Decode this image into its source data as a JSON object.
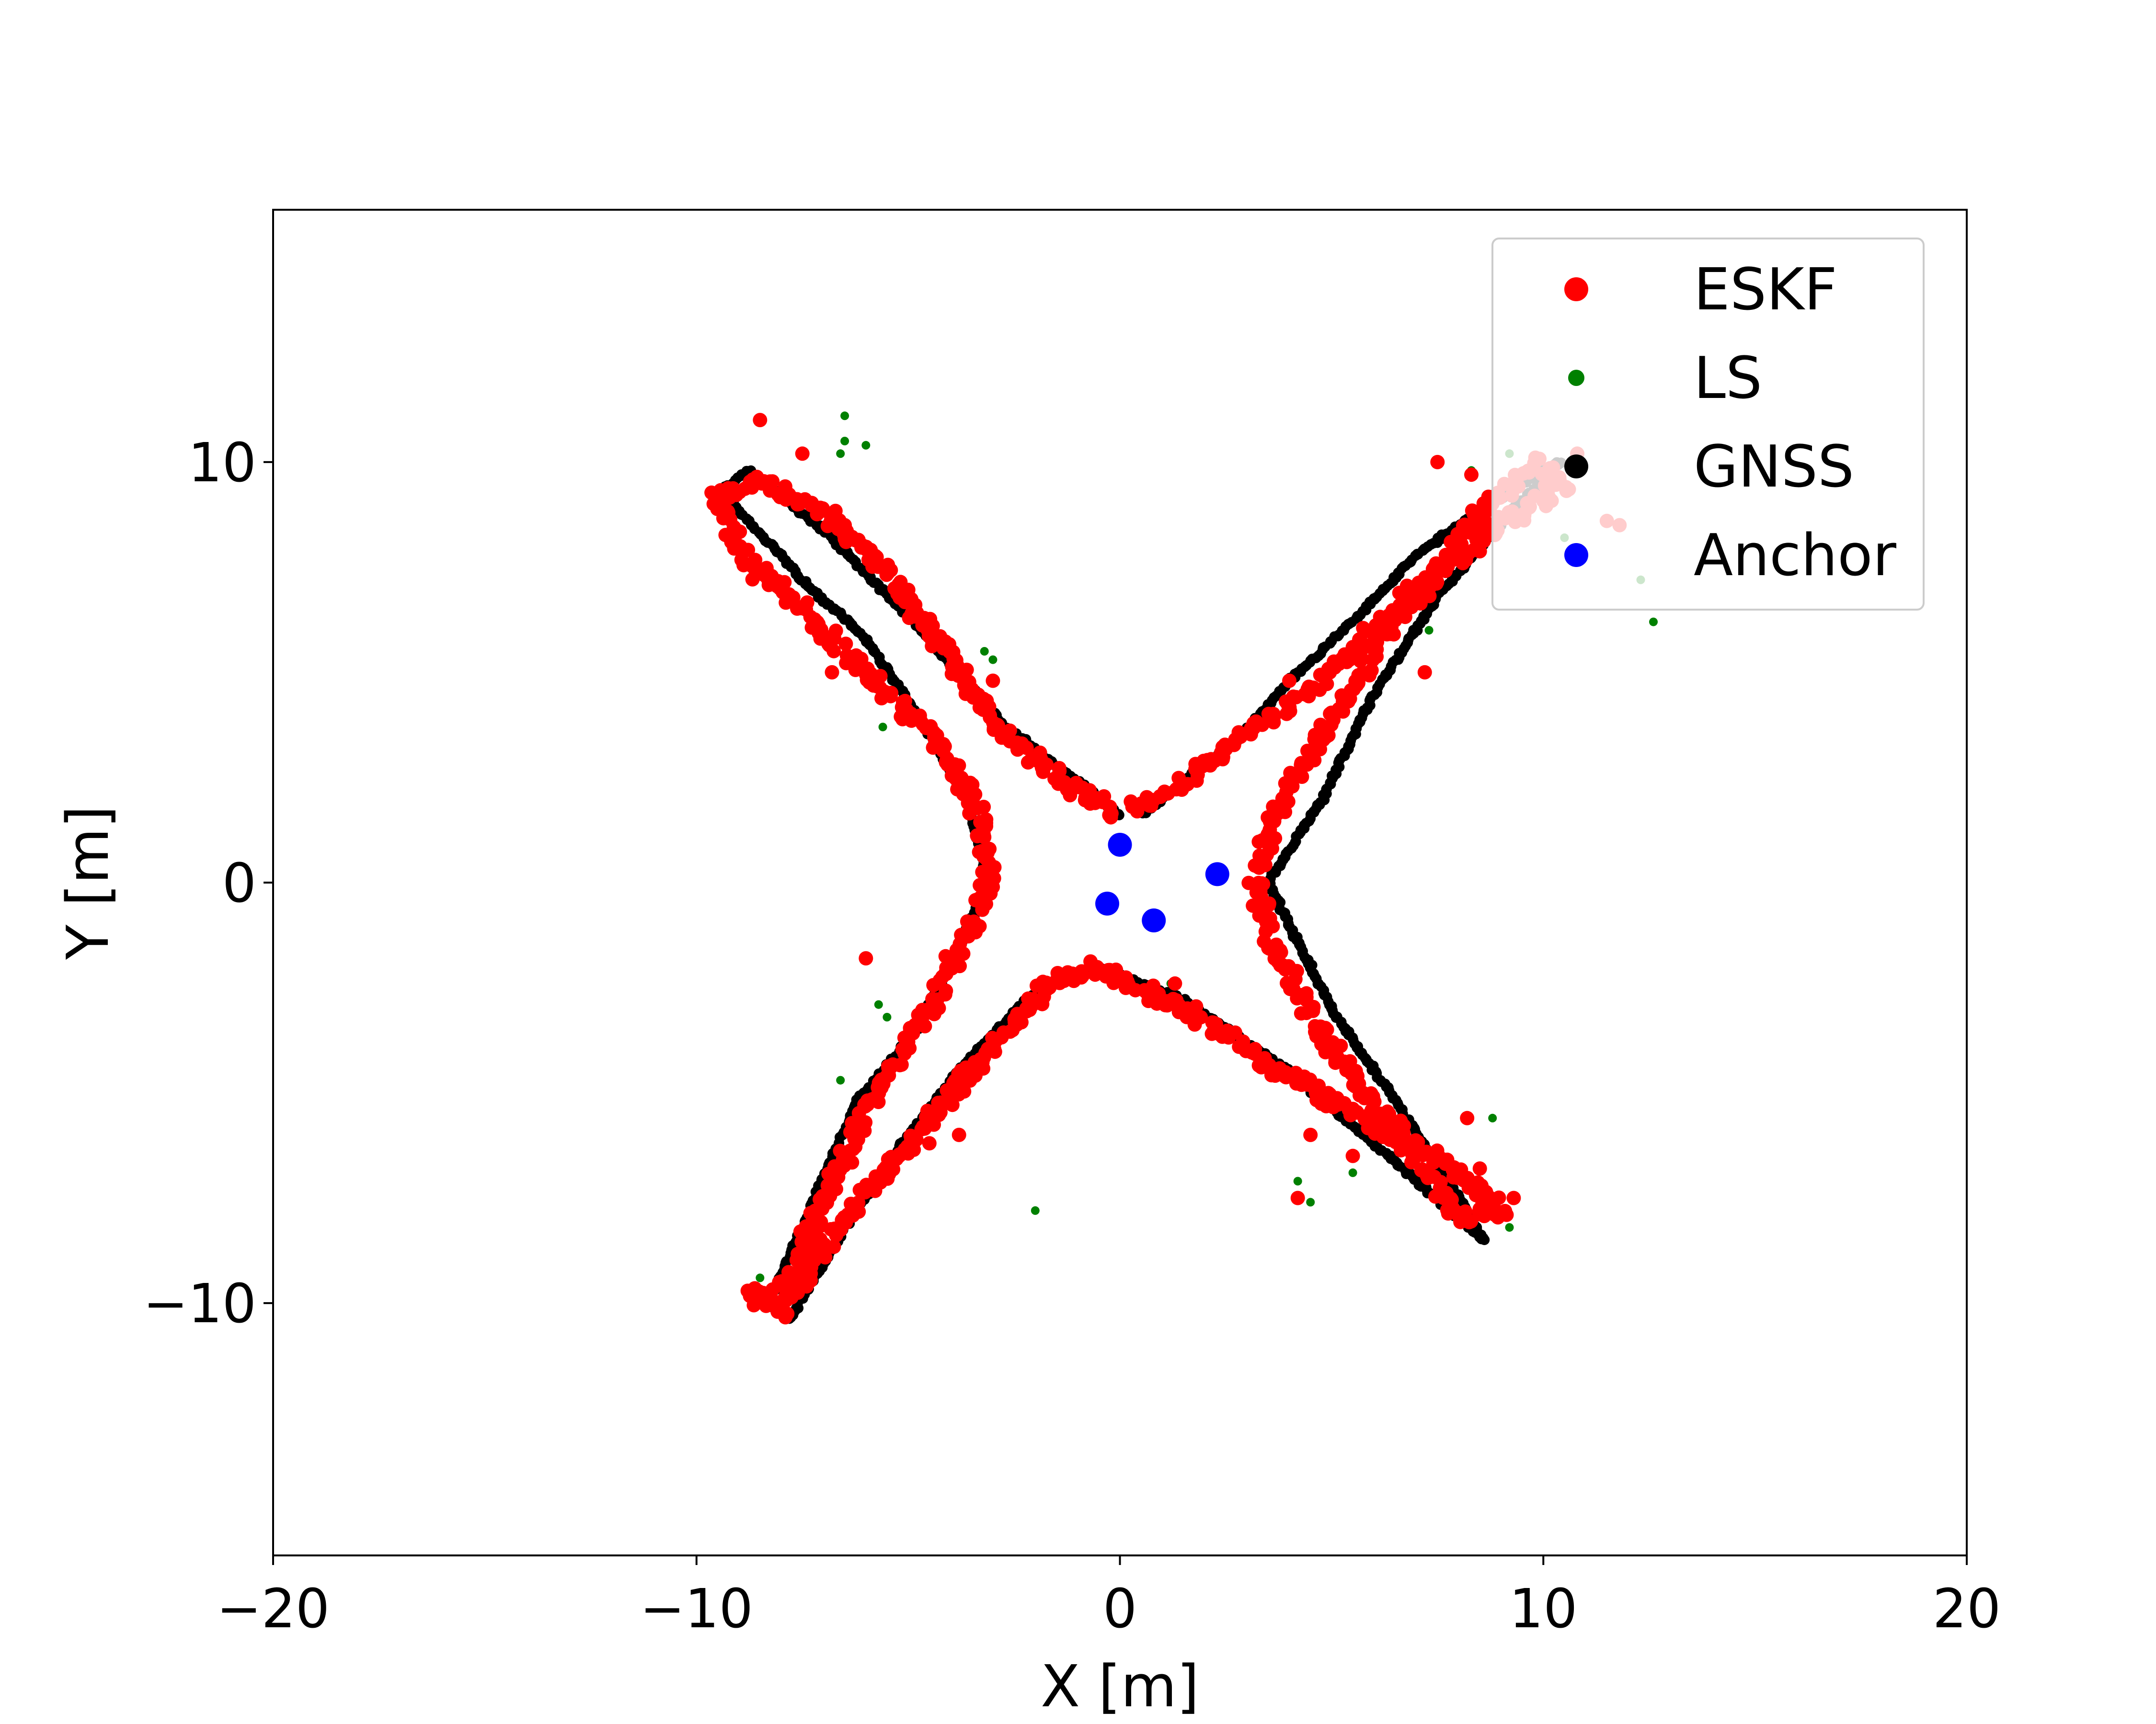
{
  "chart_data": {
    "type": "scatter",
    "title": "",
    "xlabel": "X [m]",
    "ylabel": "Y [m]",
    "xlim": [
      -20,
      20
    ],
    "ylim": [
      -16,
      16
    ],
    "xticks": [
      -20,
      -10,
      0,
      10,
      20
    ],
    "xtick_labels": [
      "−20",
      "−10",
      "0",
      "10",
      "20"
    ],
    "yticks": [
      -10,
      0,
      10
    ],
    "ytick_labels": [
      "−10",
      "0",
      "10"
    ],
    "grid": false,
    "legend_position": "top-right",
    "series": [
      {
        "name": "ESKF",
        "color": "#ff0000",
        "path": [
          [
            -0.2,
            1.7
          ],
          [
            -1.5,
            2.5
          ],
          [
            -3.0,
            3.8
          ],
          [
            -4.5,
            6.0
          ],
          [
            -5.5,
            7.5
          ],
          [
            -7.0,
            8.8
          ],
          [
            -8.5,
            9.5
          ],
          [
            -9.5,
            9.2
          ],
          [
            -9.0,
            7.8
          ],
          [
            -7.5,
            6.5
          ],
          [
            -5.5,
            4.5
          ],
          [
            -4.0,
            3.0
          ],
          [
            -3.3,
            1.5
          ],
          [
            -3.1,
            0.0
          ],
          [
            -3.6,
            -1.2
          ],
          [
            -4.5,
            -3.0
          ],
          [
            -5.7,
            -4.8
          ],
          [
            -6.5,
            -6.5
          ],
          [
            -7.2,
            -8.0
          ],
          [
            -7.9,
            -9.6
          ],
          [
            -8.7,
            -9.8
          ],
          [
            -8.0,
            -10.2
          ],
          [
            -7.0,
            -8.6
          ],
          [
            -5.5,
            -6.8
          ],
          [
            -3.5,
            -4.5
          ],
          [
            -1.8,
            -2.5
          ],
          [
            -0.5,
            -2.0
          ],
          [
            1.5,
            -3.0
          ],
          [
            3.5,
            -4.3
          ],
          [
            6.0,
            -5.8
          ],
          [
            7.5,
            -6.5
          ],
          [
            9.0,
            -7.8
          ],
          [
            8.0,
            -8.0
          ],
          [
            6.5,
            -5.8
          ],
          [
            5.0,
            -4.0
          ],
          [
            3.6,
            -1.5
          ],
          [
            3.2,
            0.0
          ],
          [
            3.6,
            1.5
          ],
          [
            4.8,
            3.5
          ],
          [
            6.0,
            5.5
          ],
          [
            7.2,
            7.0
          ],
          [
            8.5,
            8.8
          ],
          [
            9.8,
            10.0
          ],
          [
            10.5,
            9.5
          ],
          [
            9.0,
            8.5
          ],
          [
            7.0,
            7.0
          ],
          [
            5.5,
            5.5
          ],
          [
            4.0,
            4.2
          ],
          [
            2.5,
            3.2
          ],
          [
            1.0,
            2.0
          ],
          [
            0.3,
            1.7
          ]
        ],
        "outliers": [
          [
            -8.5,
            11.0
          ],
          [
            -7.5,
            10.2
          ],
          [
            -6.5,
            8.5
          ],
          [
            -6.8,
            5.0
          ],
          [
            -6.0,
            5.0
          ],
          [
            -3.0,
            4.8
          ],
          [
            -6.0,
            -1.8
          ],
          [
            -4.5,
            -6.2
          ],
          [
            -3.8,
            -6.0
          ],
          [
            -0.8,
            2.0
          ],
          [
            1.3,
            -2.4
          ],
          [
            4.2,
            -7.5
          ],
          [
            4.5,
            -6.0
          ],
          [
            5.5,
            -6.5
          ],
          [
            8.2,
            -5.6
          ],
          [
            8.5,
            -6.8
          ],
          [
            9.3,
            -7.5
          ],
          [
            4.0,
            4.8
          ],
          [
            5.5,
            5.6
          ],
          [
            7.2,
            5.0
          ],
          [
            7.5,
            10.0
          ],
          [
            8.3,
            9.7
          ],
          [
            10.8,
            10.2
          ],
          [
            11.5,
            8.6
          ],
          [
            11.8,
            8.5
          ]
        ],
        "marker_size": 30
      },
      {
        "name": "LS",
        "color": "#008000",
        "points": [
          [
            -6.5,
            11.1
          ],
          [
            -6.5,
            10.5
          ],
          [
            -6.0,
            10.4
          ],
          [
            -6.6,
            10.2
          ],
          [
            -3.2,
            5.5
          ],
          [
            -3.0,
            5.3
          ],
          [
            -5.6,
            3.7
          ],
          [
            -5.7,
            -2.9
          ],
          [
            -5.5,
            -3.2
          ],
          [
            -6.6,
            -4.7
          ],
          [
            -4.8,
            -6.0
          ],
          [
            -2.0,
            -7.8
          ],
          [
            -8.5,
            -9.4
          ],
          [
            4.2,
            -7.1
          ],
          [
            4.5,
            -7.6
          ],
          [
            5.5,
            -6.9
          ],
          [
            7.0,
            -6.3
          ],
          [
            8.8,
            -5.6
          ],
          [
            9.2,
            -8.2
          ],
          [
            12.6,
            6.2
          ],
          [
            12.3,
            7.2
          ],
          [
            10.5,
            8.2
          ],
          [
            8.3,
            9.8
          ],
          [
            9.2,
            10.2
          ],
          [
            -0.5,
            2.0
          ],
          [
            1.2,
            -2.4
          ],
          [
            7.3,
            6.0
          ]
        ],
        "marker_size": 18
      },
      {
        "name": "GNSS",
        "color": "#000000",
        "path": [
          [
            0.0,
            1.6
          ],
          [
            -2.8,
            3.8
          ],
          [
            -4.5,
            5.8
          ],
          [
            -7.0,
            8.4
          ],
          [
            -8.8,
            9.8
          ],
          [
            -9.4,
            9.3
          ],
          [
            -7.5,
            7.2
          ],
          [
            -6.0,
            5.8
          ],
          [
            -4.8,
            4.0
          ],
          [
            -3.6,
            2.0
          ],
          [
            -3.1,
            0.0
          ],
          [
            -3.8,
            -1.5
          ],
          [
            -4.8,
            -3.5
          ],
          [
            -6.2,
            -5.2
          ],
          [
            -7.2,
            -7.5
          ],
          [
            -8.3,
            -10.0
          ],
          [
            -7.8,
            -10.4
          ],
          [
            -6.5,
            -8.2
          ],
          [
            -5.0,
            -6.0
          ],
          [
            -3.4,
            -4.0
          ],
          [
            -2.0,
            -2.6
          ],
          [
            -0.5,
            -2.0
          ],
          [
            1.5,
            -2.8
          ],
          [
            4.0,
            -4.5
          ],
          [
            6.0,
            -6.2
          ],
          [
            8.6,
            -8.5
          ],
          [
            8.0,
            -7.5
          ],
          [
            6.5,
            -5.2
          ],
          [
            5.0,
            -3.0
          ],
          [
            3.5,
            0.0
          ],
          [
            4.8,
            2.0
          ],
          [
            6.0,
            4.5
          ],
          [
            7.5,
            6.8
          ],
          [
            9.2,
            8.8
          ],
          [
            10.4,
            10.0
          ],
          [
            9.5,
            9.5
          ],
          [
            7.0,
            7.8
          ],
          [
            5.5,
            6.2
          ],
          [
            4.0,
            4.8
          ],
          [
            2.8,
            3.4
          ],
          [
            1.5,
            2.4
          ],
          [
            0.5,
            1.6
          ]
        ],
        "marker_size": 22
      },
      {
        "name": "Anchor",
        "color": "#0000ff",
        "points": [
          [
            0.0,
            0.9
          ],
          [
            2.3,
            0.2
          ],
          [
            -0.3,
            -0.5
          ],
          [
            0.8,
            -0.9
          ]
        ],
        "marker_size": 50
      }
    ]
  }
}
